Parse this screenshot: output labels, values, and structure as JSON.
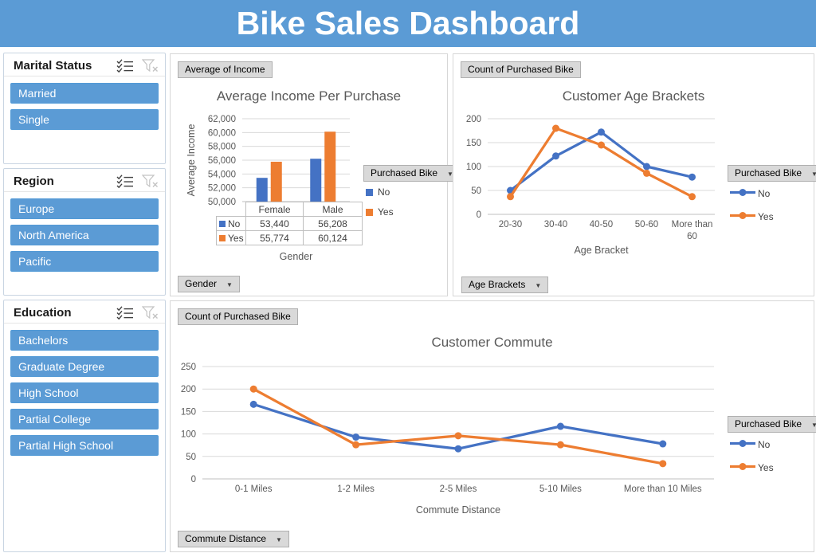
{
  "title": "Bike Sales Dashboard",
  "icons": {
    "dropdown_arrow": "▼"
  },
  "colors": {
    "banner": "#5B9BD5",
    "slicer_item": "#5B9BD5",
    "series_no": "#4472C4",
    "series_yes": "#ED7D31"
  },
  "slicers": [
    {
      "title": "Marital Status",
      "items": [
        "Married",
        "Single"
      ]
    },
    {
      "title": "Region",
      "items": [
        "Europe",
        "North America",
        "Pacific"
      ]
    },
    {
      "title": "Education",
      "items": [
        "Bachelors",
        "Graduate Degree",
        "High School",
        "Partial College",
        "Partial High School"
      ]
    }
  ],
  "field_buttons": {
    "average_of_income": "Average of Income",
    "count_of_purchased_bike": "Count of Purchased Bike",
    "gender": "Gender",
    "age_brackets": "Age Brackets",
    "commute_distance": "Commute Distance",
    "purchased_bike": "Purchased Bike"
  },
  "chart_data": [
    {
      "id": "income",
      "type": "bar",
      "title": "Average Income Per Purchase",
      "xlabel": "Gender",
      "ylabel": "Average Income",
      "categories": [
        "Female",
        "Male"
      ],
      "series": [
        {
          "name": "No",
          "color": "#4472C4",
          "values": [
            53440,
            56208
          ]
        },
        {
          "name": "Yes",
          "color": "#ED7D31",
          "values": [
            55774,
            60124
          ]
        }
      ],
      "table": [
        [
          "53,440",
          "56,208"
        ],
        [
          "55,774",
          "60,124"
        ]
      ],
      "ylim": [
        50000,
        62000
      ],
      "yticks": [
        "50,000",
        "52,000",
        "54,000",
        "56,000",
        "58,000",
        "60,000",
        "62,000"
      ],
      "legend_title": "Purchased Bike",
      "legend_position": "right",
      "grid": true
    },
    {
      "id": "age",
      "type": "line",
      "title": "Customer Age Brackets",
      "xlabel": "Age Bracket",
      "ylabel": "",
      "categories": [
        "20-30",
        "30-40",
        "40-50",
        "50-60",
        "More than 60"
      ],
      "series": [
        {
          "name": "No",
          "color": "#4472C4",
          "values": [
            50,
            122,
            172,
            100,
            78
          ]
        },
        {
          "name": "Yes",
          "color": "#ED7D31",
          "values": [
            37,
            180,
            145,
            86,
            37
          ]
        }
      ],
      "ylim": [
        0,
        200
      ],
      "yticks": [
        "0",
        "50",
        "100",
        "150",
        "200"
      ],
      "legend_title": "Purchased Bike",
      "legend_position": "right",
      "grid": true
    },
    {
      "id": "commute",
      "type": "line",
      "title": "Customer Commute",
      "xlabel": "Commute Distance",
      "ylabel": "",
      "categories": [
        "0-1 Miles",
        "1-2 Miles",
        "2-5 Miles",
        "5-10 Miles",
        "More than 10 Miles"
      ],
      "series": [
        {
          "name": "No",
          "color": "#4472C4",
          "values": [
            166,
            93,
            67,
            117,
            78
          ]
        },
        {
          "name": "Yes",
          "color": "#ED7D31",
          "values": [
            200,
            76,
            96,
            76,
            34
          ]
        }
      ],
      "ylim": [
        0,
        250
      ],
      "yticks": [
        "0",
        "50",
        "100",
        "150",
        "200",
        "250"
      ],
      "legend_title": "Purchased Bike",
      "legend_position": "right",
      "grid": true
    }
  ]
}
